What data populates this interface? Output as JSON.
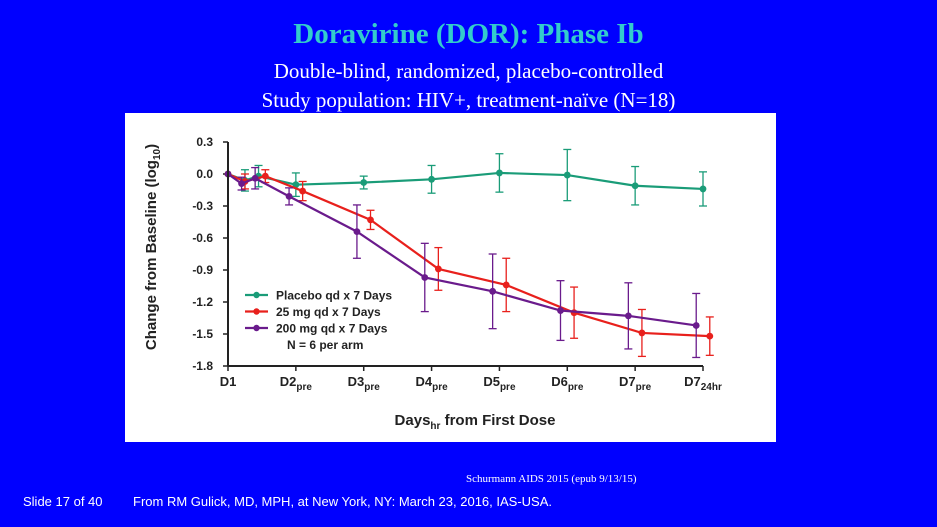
{
  "slide": {
    "title": "Doravirine (DOR):  Phase Ib",
    "subtitle_line1": "Double-blind, randomized, placebo-controlled",
    "subtitle_line2": "Study population:  HIV+, treatment-naïve (N=18)",
    "citation": "Schurmann AIDS 2015 (epub 9/13/15)",
    "slide_number": "Slide 17 of 40",
    "source": "From RM Gulick, MD, MPH, at New York, NY: March 23, 2016, IAS-USA."
  },
  "chart_data": {
    "type": "line",
    "title": "",
    "ylabel": "Change from Baseline (log",
    "ylabel_sub": "10",
    "ylabel_close": ")",
    "xlabel": "Days",
    "xlabel_sub": "hr",
    "xlabel_rest": " from First Dose",
    "ylim": [
      -1.8,
      0.3
    ],
    "y_ticks": [
      0.3,
      0.0,
      -0.3,
      -0.6,
      -0.9,
      -1.2,
      -1.5,
      -1.8
    ],
    "y_tick_labels": [
      "0.3",
      "0.0",
      "-0.3",
      "-0.6",
      "-0.9",
      "-1.2",
      "-1.5",
      "-1.8"
    ],
    "xlim": [
      1,
      8
    ],
    "x_ticks": [
      {
        "x": 1,
        "main": "D1",
        "sub": ""
      },
      {
        "x": 2,
        "main": "D2",
        "sub": "pre"
      },
      {
        "x": 3,
        "main": "D3",
        "sub": "pre"
      },
      {
        "x": 4,
        "main": "D4",
        "sub": "pre"
      },
      {
        "x": 5,
        "main": "D5",
        "sub": "pre"
      },
      {
        "x": 6,
        "main": "D6",
        "sub": "pre"
      },
      {
        "x": 7,
        "main": "D7",
        "sub": "pre"
      },
      {
        "x": 8,
        "main": "D7",
        "sub": "24hr"
      }
    ],
    "legend_note": "N = 6 per arm",
    "series": [
      {
        "name": "Placebo qd x 7 Days",
        "color": "#1a9c78",
        "points": [
          {
            "x": 1.0,
            "y": 0.0,
            "err": 0.0
          },
          {
            "x": 1.25,
            "y": -0.06,
            "err": 0.1
          },
          {
            "x": 1.45,
            "y": -0.02,
            "err": 0.1
          },
          {
            "x": 2.0,
            "y": -0.1,
            "err": 0.11
          },
          {
            "x": 3.0,
            "y": -0.08,
            "err": 0.06
          },
          {
            "x": 4.0,
            "y": -0.05,
            "err": 0.13
          },
          {
            "x": 5.0,
            "y": 0.01,
            "err": 0.18
          },
          {
            "x": 6.0,
            "y": -0.01,
            "err": 0.24
          },
          {
            "x": 7.0,
            "y": -0.11,
            "err": 0.18
          },
          {
            "x": 8.0,
            "y": -0.14,
            "err": 0.16
          }
        ]
      },
      {
        "name": "25 mg qd x 7 Days",
        "color": "#e8201c",
        "points": [
          {
            "x": 1.0,
            "y": 0.0,
            "err": 0.0
          },
          {
            "x": 1.25,
            "y": -0.07,
            "err": 0.07
          },
          {
            "x": 1.55,
            "y": -0.02,
            "err": 0.06
          },
          {
            "x": 2.1,
            "y": -0.16,
            "err": 0.09
          },
          {
            "x": 3.1,
            "y": -0.43,
            "err": 0.09
          },
          {
            "x": 4.1,
            "y": -0.89,
            "err": 0.2
          },
          {
            "x": 5.1,
            "y": -1.04,
            "err": 0.25
          },
          {
            "x": 6.1,
            "y": -1.3,
            "err": 0.24
          },
          {
            "x": 7.1,
            "y": -1.49,
            "err": 0.22
          },
          {
            "x": 8.1,
            "y": -1.52,
            "err": 0.18
          }
        ]
      },
      {
        "name": "200 mg qd x 7 Days",
        "color": "#6a1b8c",
        "points": [
          {
            "x": 1.0,
            "y": 0.0,
            "err": 0.0
          },
          {
            "x": 1.2,
            "y": -0.09,
            "err": 0.06
          },
          {
            "x": 1.4,
            "y": -0.04,
            "err": 0.1
          },
          {
            "x": 1.9,
            "y": -0.21,
            "err": 0.08
          },
          {
            "x": 2.9,
            "y": -0.54,
            "err": 0.25
          },
          {
            "x": 3.9,
            "y": -0.97,
            "err": 0.32
          },
          {
            "x": 4.9,
            "y": -1.1,
            "err": 0.35
          },
          {
            "x": 5.9,
            "y": -1.28,
            "err": 0.28
          },
          {
            "x": 6.9,
            "y": -1.33,
            "err": 0.31
          },
          {
            "x": 7.9,
            "y": -1.42,
            "err": 0.3
          }
        ]
      }
    ]
  }
}
